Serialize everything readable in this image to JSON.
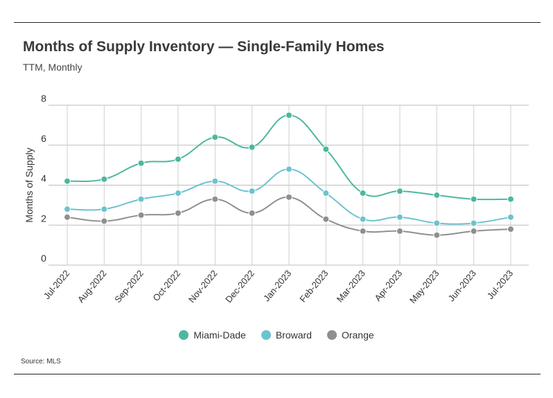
{
  "header": {
    "title": "Months of Supply Inventory — Single-Family Homes",
    "subtitle": "TTM, Monthly"
  },
  "footer": {
    "source": "Source: MLS"
  },
  "chart_data": {
    "type": "line",
    "title": "Months of Supply Inventory — Single-Family Homes",
    "subtitle": "TTM, Monthly",
    "xlabel": "",
    "ylabel": "Months of Supply",
    "ylim": [
      0,
      8
    ],
    "yticks": [
      0,
      2,
      4,
      6,
      8
    ],
    "grid": true,
    "legend_position": "bottom-center",
    "categories": [
      "Jul-2022",
      "Aug-2022",
      "Sep-2022",
      "Oct-2022",
      "Nov-2022",
      "Dec-2022",
      "Jan-2023",
      "Feb-2023",
      "Mar-2023",
      "Apr-2023",
      "May-2023",
      "Jun-2023",
      "Jul-2023"
    ],
    "series": [
      {
        "name": "Miami-Dade",
        "color": "#4bb89f",
        "values": [
          4.2,
          4.3,
          5.1,
          5.3,
          6.4,
          5.9,
          7.5,
          5.8,
          3.6,
          3.7,
          3.5,
          3.3,
          3.3
        ]
      },
      {
        "name": "Broward",
        "color": "#6cc3cf",
        "values": [
          2.8,
          2.8,
          3.3,
          3.6,
          4.2,
          3.7,
          4.8,
          3.6,
          2.3,
          2.4,
          2.1,
          2.1,
          2.4
        ]
      },
      {
        "name": "Orange",
        "color": "#8f8f8f",
        "values": [
          2.4,
          2.2,
          2.5,
          2.6,
          3.3,
          2.6,
          3.4,
          2.3,
          1.7,
          1.7,
          1.5,
          1.7,
          1.8
        ]
      }
    ]
  }
}
